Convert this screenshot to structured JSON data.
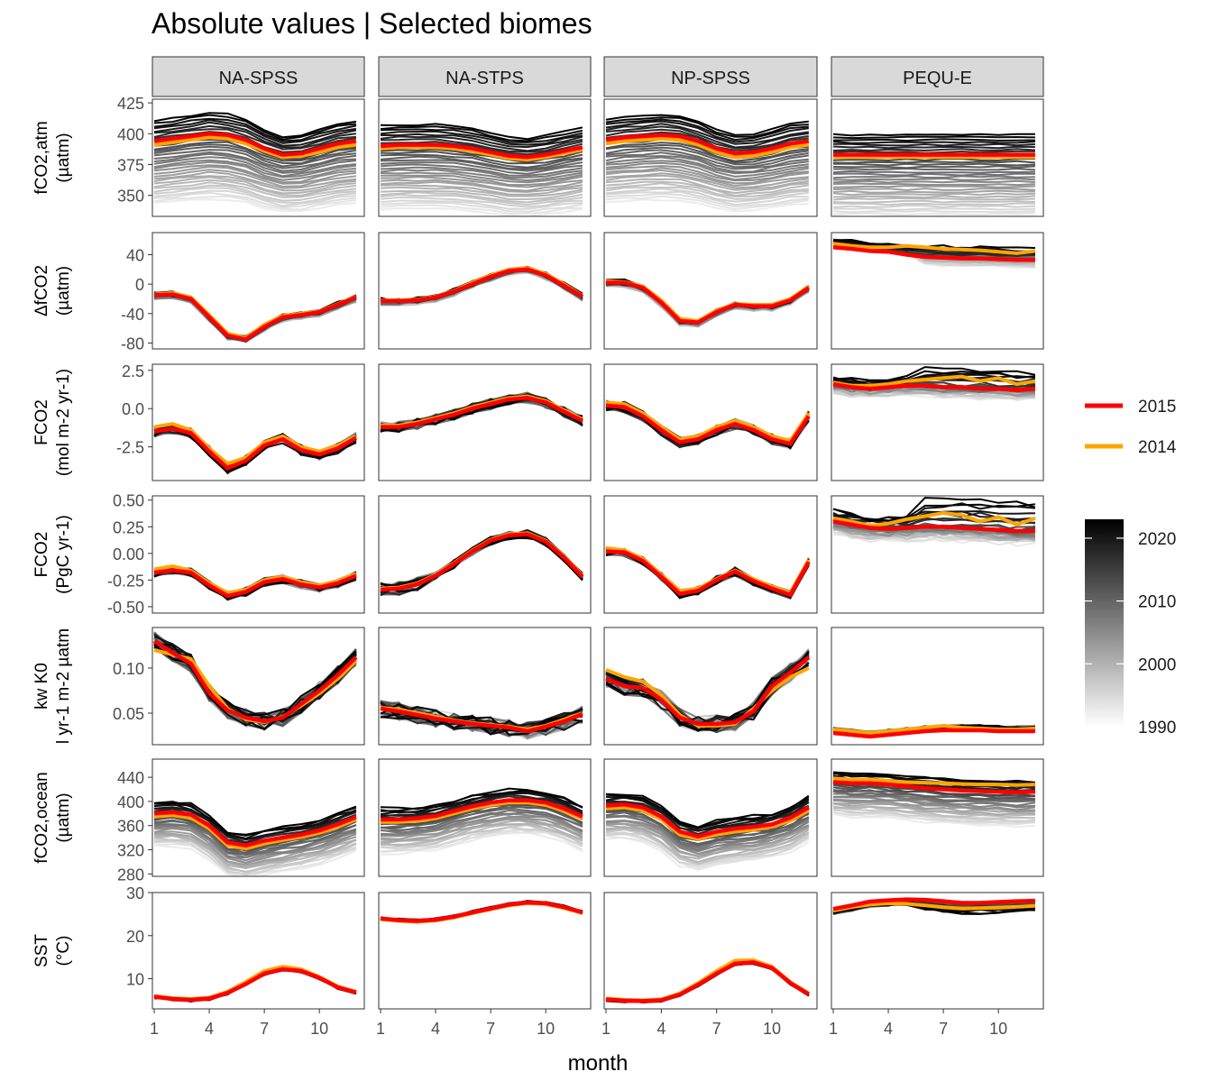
{
  "title": "Absolute values | Selected biomes",
  "chart_data": {
    "type": "line",
    "title": "Absolute values | Selected biomes",
    "xlabel": "month",
    "x": [
      1,
      2,
      3,
      4,
      5,
      6,
      7,
      8,
      9,
      10,
      11,
      12
    ],
    "xticks": [
      1,
      4,
      7,
      10
    ],
    "facet_columns": [
      "NA-SPSS",
      "NA-STPS",
      "NP-SPSS",
      "PEQU-E"
    ],
    "rows": [
      {
        "ylabel_lines": [
          "fCO2,atm",
          "(µatm)"
        ],
        "ylim": [
          333,
          428
        ],
        "yticks": [
          350,
          375,
          400,
          425
        ],
        "ytick_labels": [
          "350",
          "375",
          "400",
          "425"
        ]
      },
      {
        "ylabel_lines": [
          "ΔfCO2",
          "(µatm)"
        ],
        "ylim": [
          -88,
          70
        ],
        "yticks": [
          -80,
          -40,
          0,
          40
        ],
        "ytick_labels": [
          "-80",
          "-40",
          "0",
          "40"
        ]
      },
      {
        "ylabel_lines": [
          "FCO2",
          "(mol m-2 yr-1)"
        ],
        "ylim": [
          -4.7,
          2.9
        ],
        "yticks": [
          -2.5,
          0,
          2.5
        ],
        "ytick_labels": [
          "-2.5",
          "0.0",
          "2.5"
        ]
      },
      {
        "ylabel_lines": [
          "FCO2",
          "(PgC yr-1)"
        ],
        "ylim": [
          -0.56,
          0.54
        ],
        "yticks": [
          -0.5,
          -0.25,
          0,
          0.25,
          0.5
        ],
        "ytick_labels": [
          "-0.50",
          "-0.25",
          "0.00",
          "0.25",
          "0.50"
        ]
      },
      {
        "ylabel_lines": [
          "kw K0",
          "l yr-1 m-2 µatm"
        ],
        "ylim": [
          0.015,
          0.145
        ],
        "yticks": [
          0.05,
          0.1
        ],
        "ytick_labels": [
          "0.05",
          "0.10"
        ]
      },
      {
        "ylabel_lines": [
          "fCO2,ocean",
          "(µatm)"
        ],
        "ylim": [
          276,
          470
        ],
        "yticks": [
          280,
          320,
          360,
          400,
          440
        ],
        "ytick_labels": [
          "280",
          "320",
          "360",
          "400",
          "440"
        ]
      },
      {
        "ylabel_lines": [
          "SST",
          "(°C)"
        ],
        "ylim": [
          3,
          30
        ],
        "yticks": [
          10,
          20,
          30
        ],
        "ytick_labels": [
          "10",
          "20",
          "30"
        ]
      }
    ],
    "highlight_series": [
      {
        "name": "2015",
        "color": "#ff0000"
      },
      {
        "name": "2014",
        "color": "#ffa500"
      }
    ],
    "colorbar": {
      "labels": [
        "2020",
        "2010",
        "2000",
        "1990"
      ],
      "range": [
        1990,
        2023
      ],
      "low_color": "#ffffff",
      "high_color": "#000000"
    },
    "series_2015": {
      "fco2atm": [
        [
          394,
          396,
          398,
          400,
          399,
          395,
          388,
          383,
          384,
          388,
          392,
          394
        ],
        [
          390,
          391,
          391,
          391,
          390,
          388,
          385,
          382,
          381,
          383,
          386,
          389
        ],
        [
          395,
          397,
          398,
          399,
          398,
          394,
          388,
          384,
          385,
          388,
          392,
          394
        ],
        [
          383,
          383,
          383,
          383,
          383,
          383,
          383,
          383,
          383,
          383,
          383,
          383
        ]
      ],
      "dfco2": [
        [
          -15,
          -14,
          -20,
          -45,
          -70,
          -75,
          -58,
          -45,
          -42,
          -38,
          -28,
          -18
        ],
        [
          -23,
          -23,
          -22,
          -18,
          -10,
          0,
          10,
          18,
          20,
          12,
          -2,
          -17
        ],
        [
          2,
          2,
          -5,
          -25,
          -50,
          -52,
          -38,
          -28,
          -30,
          -30,
          -22,
          -5
        ],
        [
          50,
          48,
          45,
          44,
          40,
          37,
          36,
          35,
          35,
          34,
          33,
          33
        ]
      ],
      "fco2_mol": [
        [
          -1.5,
          -1.3,
          -1.6,
          -2.8,
          -3.9,
          -3.4,
          -2.4,
          -2.0,
          -2.7,
          -3.0,
          -2.6,
          -1.9
        ],
        [
          -1.2,
          -1.2,
          -1.0,
          -0.7,
          -0.4,
          0.0,
          0.3,
          0.6,
          0.7,
          0.4,
          -0.2,
          -0.8
        ],
        [
          0.2,
          0.1,
          -0.5,
          -1.4,
          -2.2,
          -2.0,
          -1.4,
          -1.0,
          -1.4,
          -2.0,
          -2.3,
          -0.5
        ],
        [
          1.6,
          1.4,
          1.3,
          1.4,
          1.5,
          1.5,
          1.4,
          1.4,
          1.3,
          1.3,
          1.2,
          1.3
        ]
      ],
      "fco2_pgc": [
        [
          -0.18,
          -0.16,
          -0.18,
          -0.3,
          -0.4,
          -0.36,
          -0.27,
          -0.24,
          -0.29,
          -0.32,
          -0.28,
          -0.21
        ],
        [
          -0.34,
          -0.33,
          -0.29,
          -0.21,
          -0.1,
          0.02,
          0.12,
          0.17,
          0.18,
          0.11,
          -0.04,
          -0.22
        ],
        [
          0.02,
          0.01,
          -0.07,
          -0.22,
          -0.38,
          -0.35,
          -0.25,
          -0.17,
          -0.26,
          -0.33,
          -0.39,
          -0.08
        ],
        [
          0.3,
          0.27,
          0.24,
          0.23,
          0.24,
          0.25,
          0.25,
          0.24,
          0.23,
          0.22,
          0.21,
          0.21
        ]
      ],
      "kwk0": [
        [
          0.13,
          0.117,
          0.105,
          0.072,
          0.053,
          0.045,
          0.041,
          0.045,
          0.06,
          0.075,
          0.092,
          0.112
        ],
        [
          0.055,
          0.052,
          0.048,
          0.044,
          0.041,
          0.038,
          0.036,
          0.034,
          0.03,
          0.035,
          0.041,
          0.049
        ],
        [
          0.088,
          0.08,
          0.078,
          0.065,
          0.045,
          0.038,
          0.038,
          0.04,
          0.052,
          0.08,
          0.095,
          0.112
        ],
        [
          0.028,
          0.026,
          0.024,
          0.026,
          0.028,
          0.03,
          0.031,
          0.031,
          0.031,
          0.03,
          0.03,
          0.03
        ]
      ],
      "fco2ocean": [
        [
          380,
          382,
          378,
          360,
          332,
          327,
          335,
          340,
          345,
          352,
          362,
          374
        ],
        [
          370,
          370,
          372,
          376,
          384,
          392,
          398,
          402,
          402,
          398,
          388,
          375
        ],
        [
          393,
          395,
          390,
          375,
          350,
          342,
          350,
          355,
          358,
          362,
          373,
          390
        ],
        [
          432,
          430,
          430,
          428,
          425,
          422,
          420,
          418,
          417,
          416,
          415,
          416
        ]
      ],
      "sst": [
        [
          5.8,
          5.3,
          5.1,
          5.4,
          6.7,
          8.8,
          11.2,
          12.2,
          11.8,
          10.2,
          8.0,
          6.8
        ],
        [
          24.0,
          23.6,
          23.4,
          23.7,
          24.4,
          25.4,
          26.3,
          27.2,
          27.7,
          27.5,
          26.6,
          25.4
        ],
        [
          5.2,
          4.9,
          4.8,
          5.0,
          6.3,
          8.6,
          11.2,
          13.5,
          13.8,
          12.5,
          9.0,
          6.4
        ],
        [
          26.2,
          27.0,
          27.9,
          28.2,
          28.4,
          28.3,
          28.0,
          27.6,
          27.6,
          27.8,
          28.0,
          28.1
        ]
      ]
    },
    "series_2014": {
      "fco2atm": [
        [
          391,
          393,
          395,
          397,
          396,
          392,
          386,
          381,
          382,
          385,
          389,
          391
        ],
        [
          388,
          389,
          389,
          389,
          388,
          386,
          383,
          380,
          379,
          381,
          384,
          387
        ],
        [
          392,
          394,
          395,
          396,
          395,
          391,
          385,
          381,
          382,
          385,
          389,
          391
        ],
        [
          381,
          381,
          381,
          381,
          381,
          381,
          381,
          381,
          381,
          381,
          381,
          381
        ]
      ],
      "dfco2": [
        [
          -14,
          -12,
          -18,
          -42,
          -67,
          -73,
          -55,
          -43,
          -40,
          -37,
          -27,
          -17
        ],
        [
          -22,
          -22,
          -21,
          -17,
          -9,
          2,
          12,
          20,
          22,
          14,
          0,
          -16
        ],
        [
          4,
          3,
          -3,
          -22,
          -47,
          -50,
          -36,
          -27,
          -28,
          -28,
          -20,
          -3
        ],
        [
          55,
          52,
          50,
          50,
          52,
          50,
          48,
          47,
          46,
          44,
          42,
          45
        ]
      ],
      "fco2_mol": [
        [
          -1.2,
          -1.0,
          -1.4,
          -2.6,
          -3.6,
          -3.2,
          -2.2,
          -1.8,
          -2.5,
          -2.8,
          -2.4,
          -1.8
        ],
        [
          -1.1,
          -1.1,
          -0.9,
          -0.6,
          -0.3,
          0.1,
          0.4,
          0.7,
          0.8,
          0.5,
          -0.1,
          -0.7
        ],
        [
          0.4,
          0.3,
          -0.3,
          -1.2,
          -2.0,
          -1.8,
          -1.2,
          -0.8,
          -1.2,
          -1.8,
          -2.1,
          -0.3
        ],
        [
          1.7,
          1.5,
          1.5,
          1.6,
          1.8,
          1.9,
          2.0,
          2.1,
          1.8,
          2.0,
          1.6,
          1.8
        ]
      ],
      "fco2_pgc": [
        [
          -0.15,
          -0.12,
          -0.16,
          -0.28,
          -0.37,
          -0.34,
          -0.25,
          -0.22,
          -0.27,
          -0.3,
          -0.26,
          -0.19
        ],
        [
          -0.33,
          -0.32,
          -0.28,
          -0.2,
          -0.09,
          0.03,
          0.13,
          0.18,
          0.19,
          0.12,
          -0.03,
          -0.21
        ],
        [
          0.05,
          0.03,
          -0.05,
          -0.2,
          -0.35,
          -0.33,
          -0.24,
          -0.16,
          -0.24,
          -0.31,
          -0.37,
          -0.06
        ],
        [
          0.33,
          0.3,
          0.26,
          0.28,
          0.32,
          0.35,
          0.38,
          0.36,
          0.3,
          0.34,
          0.27,
          0.33
        ]
      ],
      "kwk0": [
        [
          0.12,
          0.115,
          0.11,
          0.08,
          0.055,
          0.043,
          0.04,
          0.046,
          0.058,
          0.072,
          0.088,
          0.108
        ],
        [
          0.056,
          0.054,
          0.05,
          0.046,
          0.042,
          0.039,
          0.037,
          0.035,
          0.032,
          0.036,
          0.043,
          0.05
        ],
        [
          0.098,
          0.09,
          0.085,
          0.07,
          0.048,
          0.036,
          0.036,
          0.038,
          0.055,
          0.075,
          0.09,
          0.1
        ],
        [
          0.032,
          0.03,
          0.028,
          0.03,
          0.032,
          0.034,
          0.036,
          0.034,
          0.033,
          0.032,
          0.032,
          0.033
        ]
      ],
      "fco2ocean": [
        [
          375,
          377,
          373,
          355,
          327,
          322,
          330,
          336,
          341,
          348,
          358,
          370
        ],
        [
          366,
          366,
          368,
          372,
          380,
          388,
          394,
          398,
          398,
          394,
          384,
          371
        ],
        [
          388,
          390,
          385,
          370,
          345,
          338,
          345,
          350,
          353,
          358,
          368,
          385
        ],
        [
          438,
          436,
          436,
          434,
          432,
          431,
          430,
          429,
          428,
          428,
          427,
          428
        ]
      ],
      "sst": [
        [
          6.0,
          5.5,
          5.3,
          5.6,
          7.0,
          9.3,
          11.8,
          12.8,
          12.2,
          10.4,
          8.2,
          7.0
        ],
        [
          23.8,
          23.4,
          23.2,
          23.5,
          24.2,
          25.2,
          26.1,
          27.0,
          27.5,
          27.3,
          26.4,
          25.2
        ],
        [
          5.4,
          5.1,
          5.0,
          5.2,
          6.6,
          9.0,
          11.8,
          14.2,
          14.3,
          12.8,
          9.2,
          6.6
        ],
        [
          25.8,
          26.6,
          27.2,
          27.5,
          27.4,
          27.0,
          26.6,
          26.3,
          26.4,
          26.5,
          26.7,
          26.9
        ]
      ]
    }
  }
}
